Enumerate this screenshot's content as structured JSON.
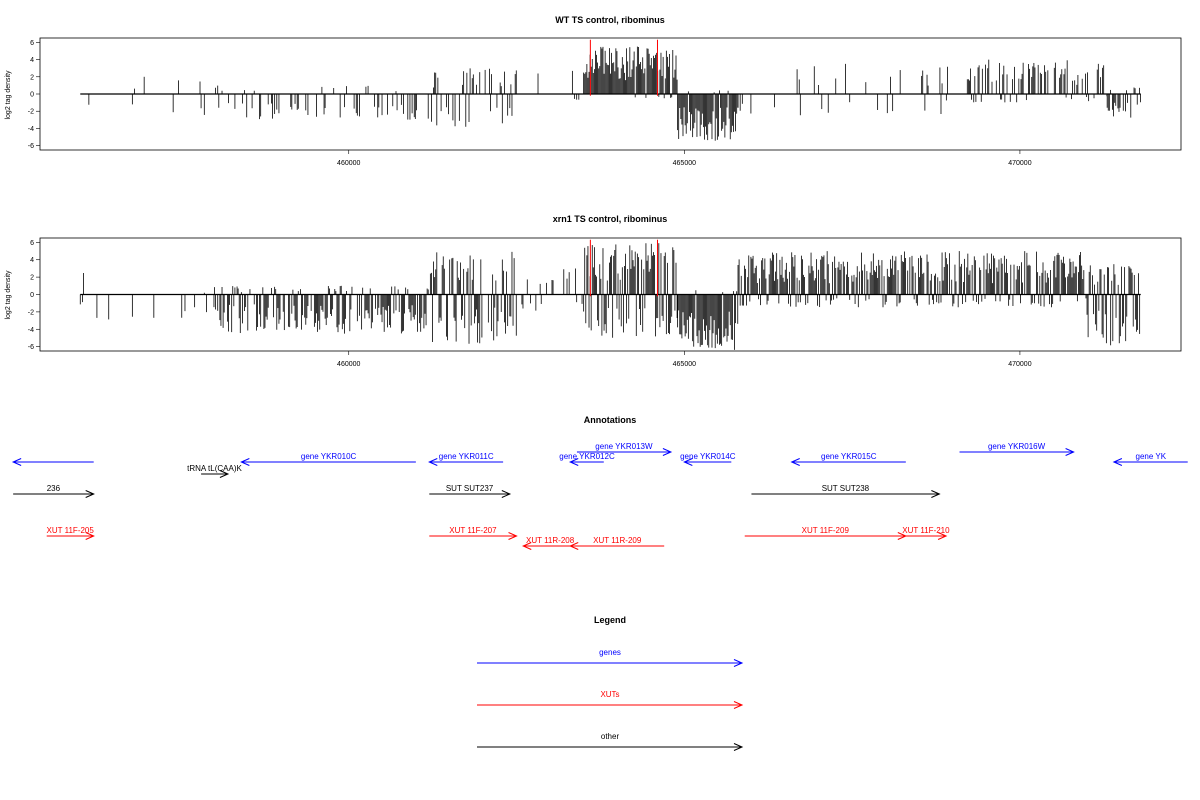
{
  "chart_data": [
    {
      "type": "bar",
      "title": "WT TS control, ribominus",
      "xlabel": "",
      "ylabel": "log2 tag density",
      "xlim": [
        455400,
        472400
      ],
      "ylim": [
        -6.5,
        6.5
      ],
      "yticks": [
        -6,
        -4,
        -2,
        0,
        2,
        4,
        6
      ],
      "xticks": [
        460000,
        465000,
        470000
      ],
      "xtick_labels": [
        "460000",
        "465000",
        "470000"
      ],
      "data_extent": [
        456000,
        471800
      ],
      "highlight_lines": [
        463600,
        464600
      ],
      "seed": 1,
      "regions": [
        {
          "from": 455400,
          "to": 456200,
          "density": 0.05,
          "pos": 0,
          "neg": 2.5
        },
        {
          "from": 456200,
          "to": 458000,
          "density": 0.03,
          "pos": 2.0,
          "neg": 2.5
        },
        {
          "from": 458000,
          "to": 461200,
          "density": 0.35,
          "pos": 1.0,
          "neg": 3.0
        },
        {
          "from": 461200,
          "to": 462500,
          "density": 0.6,
          "pos": 3.0,
          "neg": 4.0
        },
        {
          "from": 462500,
          "to": 463500,
          "density": 0.05,
          "pos": 3.0,
          "neg": 1.0
        },
        {
          "from": 463500,
          "to": 464900,
          "density": 1.0,
          "pos": 5.5,
          "neg": 0.5
        },
        {
          "from": 464900,
          "to": 465800,
          "density": 1.0,
          "pos": 0.5,
          "neg": 5.5
        },
        {
          "from": 465800,
          "to": 469200,
          "density": 0.15,
          "pos": 3.5,
          "neg": 2.5
        },
        {
          "from": 469200,
          "to": 471300,
          "density": 0.55,
          "pos": 4.0,
          "neg": 1.0
        },
        {
          "from": 471300,
          "to": 471800,
          "density": 0.6,
          "pos": 1.0,
          "neg": 3.0
        }
      ]
    },
    {
      "type": "bar",
      "title": "xrn1 TS control, ribominus",
      "xlabel": "",
      "ylabel": "log2 tag density",
      "xlim": [
        455400,
        472400
      ],
      "ylim": [
        -6.5,
        6.5
      ],
      "yticks": [
        -6,
        -4,
        -2,
        0,
        2,
        4,
        6
      ],
      "xticks": [
        460000,
        465000,
        470000
      ],
      "xtick_labels": [
        "460000",
        "465000",
        "470000"
      ],
      "data_extent": [
        456000,
        471800
      ],
      "highlight_lines": [
        463600,
        464600
      ],
      "seed": 7,
      "regions": [
        {
          "from": 455400,
          "to": 456200,
          "density": 0.4,
          "pos": 2.5,
          "neg": 1.5
        },
        {
          "from": 456200,
          "to": 458000,
          "density": 0.1,
          "pos": 0.5,
          "neg": 3.0
        },
        {
          "from": 458000,
          "to": 461200,
          "density": 0.75,
          "pos": 1.0,
          "neg": 4.5
        },
        {
          "from": 461200,
          "to": 462500,
          "density": 0.85,
          "pos": 5.0,
          "neg": 6.0
        },
        {
          "from": 462500,
          "to": 463500,
          "density": 0.2,
          "pos": 3.0,
          "neg": 2.0
        },
        {
          "from": 463500,
          "to": 464900,
          "density": 1.0,
          "pos": 6.0,
          "neg": 5.0
        },
        {
          "from": 464900,
          "to": 465800,
          "density": 1.0,
          "pos": 0.5,
          "neg": 6.5
        },
        {
          "from": 465800,
          "to": 471000,
          "density": 0.9,
          "pos": 5.0,
          "neg": 1.5
        },
        {
          "from": 471000,
          "to": 471800,
          "density": 0.9,
          "pos": 3.5,
          "neg": 6.0
        }
      ]
    }
  ],
  "colors": {
    "bar": "#000000",
    "highlight": "#ff0000",
    "genes": "#0000ff",
    "xuts": "#ff0000",
    "other": "#000000"
  },
  "annotations": {
    "title": "Annotations",
    "features": [
      {
        "label": "",
        "type": "genes",
        "dir": "left",
        "start": 455000,
        "end": 456200
      },
      {
        "label": "gene YKR010C",
        "type": "genes",
        "dir": "left",
        "start": 458400,
        "end": 461000
      },
      {
        "label": "gene YKR011C",
        "type": "genes",
        "dir": "left",
        "start": 461200,
        "end": 462300
      },
      {
        "label": "gene YKR012C",
        "type": "genes",
        "dir": "left",
        "start": 463300,
        "end": 463800
      },
      {
        "label": "gene YKR013W",
        "type": "genes",
        "dir": "right",
        "start": 463400,
        "end": 464800
      },
      {
        "label": "gene YKR014C",
        "type": "genes",
        "dir": "left",
        "start": 465000,
        "end": 465700
      },
      {
        "label": "gene YKR015C",
        "type": "genes",
        "dir": "left",
        "start": 466600,
        "end": 468300
      },
      {
        "label": "gene YKR016W",
        "type": "genes",
        "dir": "right",
        "start": 469100,
        "end": 470800
      },
      {
        "label": "gene YK",
        "type": "genes",
        "dir": "left",
        "start": 471400,
        "end": 472500
      },
      {
        "label": "tRNA tL(CAA)K",
        "type": "other",
        "dir": "right",
        "start": 457800,
        "end": 458200
      },
      {
        "label": "236",
        "type": "other",
        "dir": "right",
        "start": 455000,
        "end": 456200
      },
      {
        "label": "SUT SUT237",
        "type": "other",
        "dir": "right",
        "start": 461200,
        "end": 462400
      },
      {
        "label": "SUT SUT238",
        "type": "other",
        "dir": "right",
        "start": 466000,
        "end": 468800
      },
      {
        "label": "XUT 11F-205",
        "type": "xuts",
        "dir": "right",
        "start": 455500,
        "end": 456200
      },
      {
        "label": "XUT 11F-207",
        "type": "xuts",
        "dir": "right",
        "start": 461200,
        "end": 462500
      },
      {
        "label": "XUT 11R-208",
        "type": "xuts",
        "dir": "left",
        "start": 462600,
        "end": 463400
      },
      {
        "label": "XUT 11R-209",
        "type": "xuts",
        "dir": "left",
        "start": 463300,
        "end": 464700
      },
      {
        "label": "XUT 11F-209",
        "type": "xuts",
        "dir": "right",
        "start": 465900,
        "end": 468300
      },
      {
        "label": "XUT 11F-210",
        "type": "xuts",
        "dir": "right",
        "start": 468300,
        "end": 468900
      }
    ]
  },
  "legend": {
    "title": "Legend",
    "items": [
      {
        "label": "genes",
        "type": "genes"
      },
      {
        "label": "XUTs",
        "type": "xuts"
      },
      {
        "label": "other",
        "type": "other"
      }
    ]
  }
}
